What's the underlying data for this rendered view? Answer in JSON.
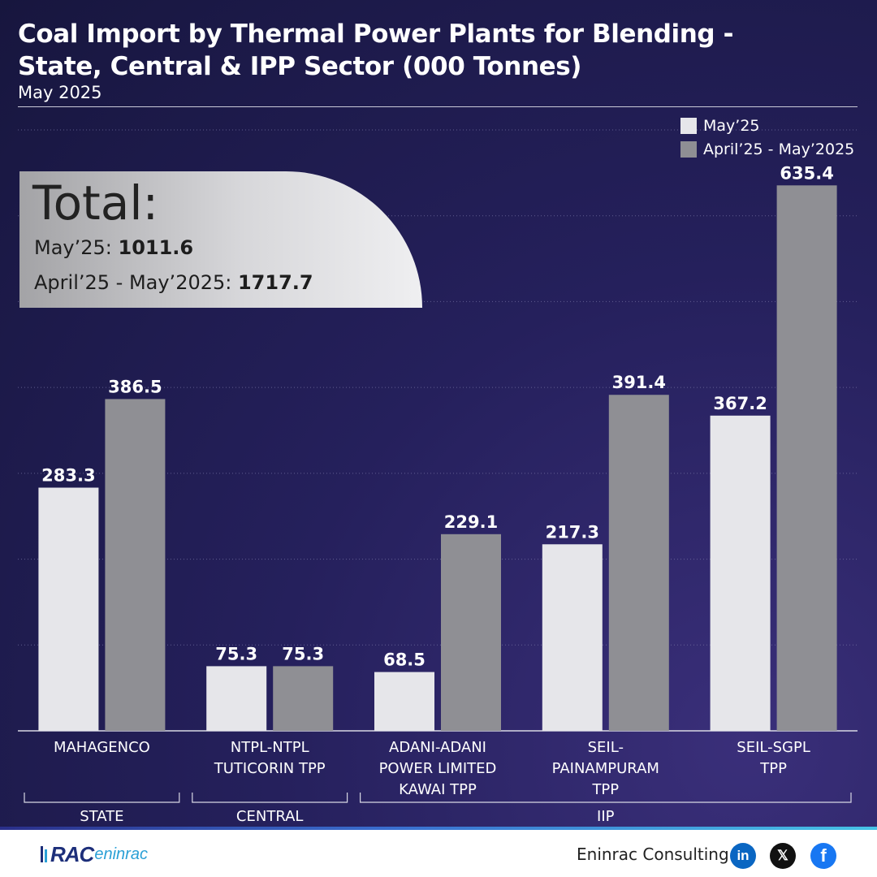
{
  "header": {
    "title_line1": "Coal Import by Thermal Power Plants for Blending -",
    "title_line2": "State, Central & IPP Sector (000 Tonnes)",
    "subtitle": "May 2025"
  },
  "totals": {
    "heading": "Total:",
    "may_label": "May’25: ",
    "may_value": "1011.6",
    "cumulative_label": "April’25 - May’2025: ",
    "cumulative_value": "1717.7"
  },
  "chart_data": {
    "type": "bar",
    "title": "Coal Import by Thermal Power Plants for Blending - State, Central & IPP Sector (000 Tonnes)",
    "categories": [
      [
        "MAHAGENCO"
      ],
      [
        "NTPL-NTPL",
        "TUTICORIN  TPP"
      ],
      [
        "ADANI-ADANI",
        "POWER LIMITED",
        "KAWAI TPP"
      ],
      [
        "SEIL-",
        "PAINAMPURAM",
        "TPP"
      ],
      [
        "SEIL-SGPL",
        "TPP"
      ]
    ],
    "series": [
      {
        "name": "May’25",
        "color": "#e6e6ea",
        "values": [
          283.3,
          75.3,
          68.5,
          217.3,
          367.2
        ]
      },
      {
        "name": "April’25 - May’2025",
        "color": "#8f8f94",
        "values": [
          386.5,
          75.3,
          229.1,
          391.4,
          635.4
        ]
      }
    ],
    "groups": [
      {
        "label": "STATE",
        "from": 0,
        "to": 0
      },
      {
        "label": "CENTRAL",
        "from": 1,
        "to": 1
      },
      {
        "label": "IIP",
        "from": 2,
        "to": 4
      }
    ],
    "ylim": [
      0,
      700
    ],
    "grid": true,
    "legend": "top-right"
  },
  "footer": {
    "logo_mark": "RAC",
    "logo_text": "eninrac",
    "company": "Eninrac Consulting",
    "social": [
      {
        "icon": "linkedin-icon",
        "glyph": "in",
        "color": "#0a66c2"
      },
      {
        "icon": "x-icon",
        "glyph": "𝕏",
        "color": "#111111"
      },
      {
        "icon": "facebook-icon",
        "glyph": "f",
        "color": "#1877f2"
      }
    ]
  }
}
